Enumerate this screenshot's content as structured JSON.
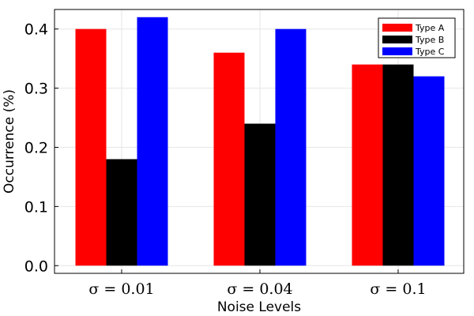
{
  "chart_data": {
    "type": "bar",
    "title": "",
    "xlabel": "Noise Levels",
    "ylabel": "Occurrence (%)",
    "categories": [
      "σ = 0.01",
      "σ = 0.04",
      "σ = 0.1"
    ],
    "ylim": [
      -0.013,
      0.433
    ],
    "yticks": [
      0.0,
      0.1,
      0.2,
      0.3,
      0.4
    ],
    "ytick_labels": [
      "0.0",
      "0.1",
      "0.2",
      "0.3",
      "0.4"
    ],
    "grid": true,
    "legend_position": "top-right",
    "series": [
      {
        "name": "Type A",
        "color": "#ff0000",
        "values": [
          0.4,
          0.36,
          0.34
        ]
      },
      {
        "name": "Type B",
        "color": "#000000",
        "values": [
          0.18,
          0.24,
          0.34
        ]
      },
      {
        "name": "Type C",
        "color": "#0000ff",
        "values": [
          0.42,
          0.4,
          0.32
        ]
      }
    ]
  }
}
